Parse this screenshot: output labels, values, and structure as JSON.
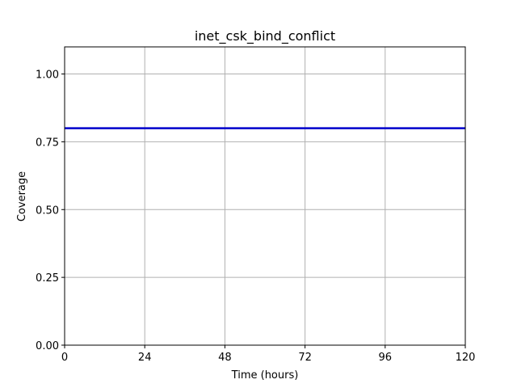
{
  "chart_data": {
    "type": "line",
    "title": "inet_csk_bind_conflict",
    "xlabel": "Time (hours)",
    "ylabel": "Coverage",
    "xlim": [
      0,
      120
    ],
    "ylim": [
      0,
      1.1
    ],
    "xticks": [
      0,
      24,
      48,
      72,
      96,
      120
    ],
    "xtick_labels": [
      "0",
      "24",
      "48",
      "72",
      "96",
      "120"
    ],
    "yticks": [
      0,
      0.25,
      0.5,
      0.75,
      1.0
    ],
    "ytick_labels": [
      "0.00",
      "0.25",
      "0.50",
      "0.75",
      "1.00"
    ],
    "grid": true,
    "legend": "none",
    "series": [
      {
        "color": "#0000cc",
        "x": [
          0,
          120
        ],
        "y": [
          0.8,
          0.8
        ]
      }
    ]
  }
}
